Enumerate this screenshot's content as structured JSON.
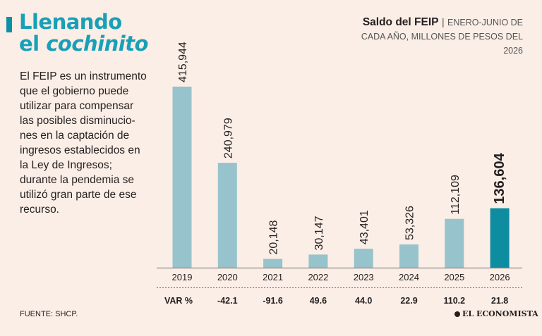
{
  "headline": {
    "line1": "Llenando",
    "line2_prefix": "el ",
    "line2_italic": "cochinito"
  },
  "description": "El FEIP es un instrumento que el gobierno puede utilizar para compensar las posibles disminucio-nes en la captación de ingresos establecidos en la Ley de Ingresos; durante la pendemia se utilizó gran parte de ese recurso.",
  "source": "FUENTE: SHCP.",
  "logo": "EL ECONOMISTA",
  "colors": {
    "bar": "#97c3cc",
    "highlight": "#0e8ca0",
    "title": "#18a0b8"
  },
  "chart_data": {
    "type": "bar",
    "title": "Saldo del FEIP",
    "title_separator": "|",
    "subtitle": "ENERO-JUNIO DE CADA AÑO, MILLONES DE PESOS DEL 2026",
    "categories": [
      "2019",
      "2020",
      "2021",
      "2022",
      "2023",
      "2024",
      "2025",
      "2026"
    ],
    "values": [
      415944,
      240979,
      20148,
      30147,
      43401,
      53326,
      112109,
      136604
    ],
    "value_labels": [
      "415,944",
      "240,979",
      "20,148",
      "30,147",
      "43,401",
      "53,326",
      "112,109",
      "136,604"
    ],
    "highlight_index": 7,
    "var_label": "VAR %",
    "var_values": [
      "-42.1",
      "-91.6",
      "49.6",
      "44.0",
      "22.9",
      "110.2",
      "21.8"
    ],
    "ylim": [
      0,
      415944
    ]
  }
}
